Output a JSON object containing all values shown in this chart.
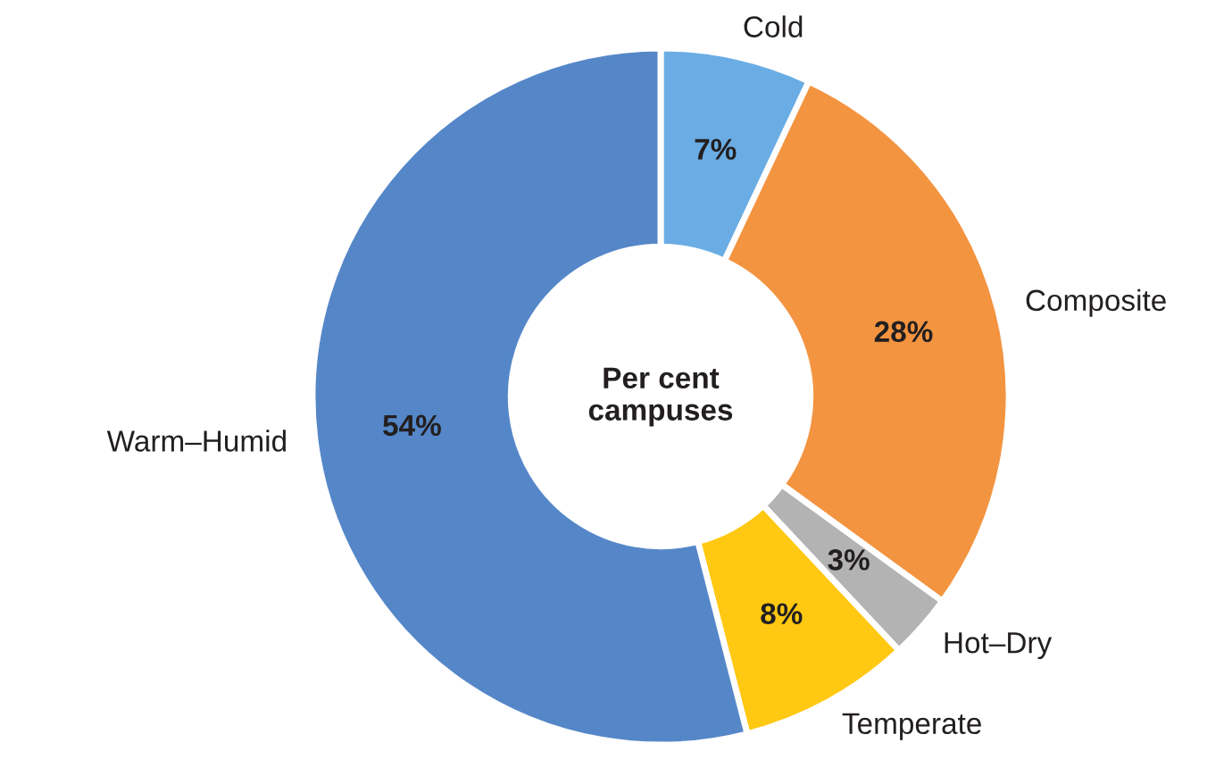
{
  "chart_data": {
    "type": "donut",
    "categories": [
      "Cold",
      "Composite",
      "Hot–Dry",
      "Temperate",
      "Warm–Humid"
    ],
    "values": [
      7,
      28,
      3,
      8,
      54
    ],
    "colors": [
      "#6aade4",
      "#f39440",
      "#b3b3b3",
      "#ffc812",
      "#5587c8"
    ],
    "value_labels": [
      "7%",
      "28%",
      "3%",
      "8%",
      "54%"
    ],
    "annotations": [
      "Per cent\ncampuses"
    ],
    "legend": false
  }
}
